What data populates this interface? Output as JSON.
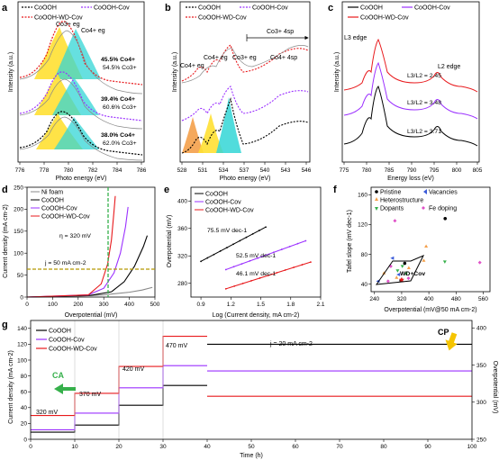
{
  "colors": {
    "pristine": "#000000",
    "vacancy": "#9b30ff",
    "wd": "#e8191c",
    "ni": "#888888",
    "yellow": "#ffe033",
    "cyan": "#33d6d6",
    "orange": "#f4a04a",
    "green": "#36b04b",
    "ann_green": "#3a8f22",
    "ann_purple": "#b429f9",
    "ann_yellow": "#b59800",
    "ann_red": "#e8191c"
  },
  "panels": {
    "a": {
      "label": "a",
      "xlabel": "Photo energy (eV)",
      "ylabel": "Intensity (a.u.)",
      "ticks": [
        "776",
        "778",
        "780",
        "782",
        "784",
        "786"
      ],
      "legend": [
        "CoOOH",
        "CoOOH-Cov",
        "CoOOH-WD-Cov"
      ],
      "peak_labels": [
        "Co3+ eg",
        "Co4+ eg"
      ],
      "ratios": [
        {
          "co4": "45.5% Co4+",
          "co3": "54.5% Co3+"
        },
        {
          "co4": "39.4% Co4+",
          "co3": "60.6% Co3+"
        },
        {
          "co4": "38.0% Co4+",
          "co3": "62.0% Co3+"
        }
      ]
    },
    "b": {
      "label": "b",
      "xlabel": "Photo energy (eV)",
      "ylabel": "Intensity (a.u.)",
      "ticks": [
        "528",
        "531",
        "534",
        "537",
        "540",
        "543",
        "546"
      ],
      "legend": [
        "CoOOH",
        "CoOOH-Cov",
        "CoOOH-WD-Cov"
      ],
      "peak_labels": [
        "Co4+ eg",
        "Co4+ eg",
        "Co3+ eg",
        "Co3+ 4sp",
        "Co4+ 4sp"
      ]
    },
    "c": {
      "label": "c",
      "xlabel": "Energy loss (eV)",
      "ylabel": "Intensity (a.u.)",
      "ticks": [
        "775",
        "780",
        "785",
        "790",
        "795",
        "800",
        "805"
      ],
      "legend": [
        "CoOOH",
        "CoOOH-Cov",
        "CoOOH-WD-Cov"
      ],
      "edges": [
        "L3 edge",
        "L2 edge"
      ],
      "ratios": [
        "L3/L2 = 2.45",
        "L3/L2 = 3.48",
        "L3/L2 = 3.71"
      ]
    },
    "d": {
      "label": "d",
      "xlabel": "Overpotential (mV)",
      "ylabel": "Current density (mA cm-2)",
      "xticks": [
        "0",
        "100",
        "200",
        "300",
        "400",
        "500"
      ],
      "yticks": [
        "0",
        "50",
        "100",
        "150",
        "200",
        "250"
      ],
      "legend": [
        "Ni foam",
        "CoOOH",
        "CoOOH-Cov",
        "CoOOH-WD-Cov"
      ],
      "eta": "η = 320 mV",
      "j": "j = 50 mA cm-2"
    },
    "e": {
      "label": "e",
      "xlabel": "Log (Current density, mA cm-2)",
      "ylabel": "Overpotential (mV)",
      "xticks": [
        "0.9",
        "1.2",
        "1.5",
        "1.8",
        "2.1"
      ],
      "yticks": [
        "280",
        "320",
        "360",
        "400"
      ],
      "legend": [
        "CoOOH",
        "CoOOH-Cov",
        "CoOOH-WD-Cov"
      ],
      "slopes": [
        "75.5 mV dec-1",
        "52.5 mV dec-1",
        "46.1 mV dec-1"
      ]
    },
    "f": {
      "label": "f",
      "xlabel": "Overpotential (mV@50 mA cm-2)",
      "ylabel": "Tafel slope (mV dec-1)",
      "xticks": [
        "240",
        "320",
        "400",
        "480",
        "560"
      ],
      "yticks": [
        "40",
        "80",
        "120",
        "160"
      ],
      "legend": [
        "Pristine",
        "Vacancies",
        "Heterostructure",
        "Dopants",
        "Fe doping"
      ],
      "highlight": "WD+Cov"
    },
    "g": {
      "label": "g",
      "xlabel": "Time (h)",
      "ylabel": "Current density (mA cm-2)",
      "y2label": "Overpotential (mV)",
      "xticks": [
        "0",
        "10",
        "20",
        "30",
        "40",
        "50",
        "60",
        "70",
        "80",
        "90",
        "100"
      ],
      "yticks": [
        "0",
        "20",
        "40",
        "60",
        "80",
        "100",
        "120",
        "140"
      ],
      "y2ticks": [
        "250",
        "300",
        "350",
        "400"
      ],
      "legend": [
        "CoOOH",
        "CoOOH-Cov",
        "CoOOH-WD-Cov"
      ],
      "steps": [
        "320 mV",
        "370 mV",
        "420 mV",
        "470 mV"
      ],
      "j": "j = 20 mA cm-2",
      "ca": "CA",
      "cp": "CP"
    }
  },
  "chart_data": [
    {
      "panel": "d",
      "type": "line",
      "xlabel": "Overpotential (mV)",
      "ylabel": "Current density (mA cm-2)",
      "xlim": [
        0,
        500
      ],
      "ylim": [
        0,
        250
      ],
      "series": [
        {
          "name": "Ni foam",
          "x": [
            0,
            200,
            300,
            400,
            450,
            490
          ],
          "y": [
            0,
            2,
            5,
            11,
            16,
            22
          ]
        },
        {
          "name": "CoOOH",
          "x": [
            0,
            250,
            330,
            380,
            420,
            455,
            470
          ],
          "y": [
            0,
            4,
            12,
            35,
            70,
            115,
            140
          ]
        },
        {
          "name": "CoOOH-Cov",
          "x": [
            0,
            240,
            300,
            340,
            365,
            385,
            395
          ],
          "y": [
            0,
            5,
            20,
            55,
            100,
            160,
            205
          ]
        },
        {
          "name": "CoOOH-WD-Cov",
          "x": [
            0,
            240,
            290,
            315,
            330,
            340,
            345
          ],
          "y": [
            0,
            5,
            30,
            75,
            130,
            195,
            230
          ]
        }
      ]
    },
    {
      "panel": "e",
      "type": "line",
      "xlabel": "Log (Current density, mA cm-2)",
      "ylabel": "Overpotential (mV)",
      "xlim": [
        0.8,
        2.1
      ],
      "ylim": [
        260,
        420
      ],
      "series": [
        {
          "name": "CoOOH",
          "x": [
            0.9,
            1.55
          ],
          "y": [
            312,
            362
          ]
        },
        {
          "name": "CoOOH-Cov",
          "x": [
            1.15,
            1.95
          ],
          "y": [
            300,
            342
          ]
        },
        {
          "name": "CoOOH-WD-Cov",
          "x": [
            1.15,
            2.0
          ],
          "y": [
            272,
            311
          ]
        }
      ]
    },
    {
      "panel": "f",
      "type": "scatter",
      "xlabel": "Overpotential (mV@50 mA cm-2)",
      "ylabel": "Tafel slope (mV dec-1)",
      "xlim": [
        230,
        580
      ],
      "ylim": [
        30,
        170
      ],
      "series": [
        {
          "name": "Pristine",
          "x": [
            448,
            318,
            329
          ],
          "y": [
            128,
            45,
            68
          ]
        },
        {
          "name": "Vacancies",
          "x": [
            292,
            250,
            310
          ],
          "y": [
            75,
            44,
            53
          ]
        },
        {
          "name": "Heterostructure",
          "x": [
            385,
            392,
            341,
            268,
            305
          ],
          "y": [
            72,
            91,
            62,
            55,
            49
          ]
        },
        {
          "name": "Dopants",
          "x": [
            447,
            308,
            322,
            333
          ],
          "y": [
            70,
            58,
            64,
            54
          ]
        },
        {
          "name": "Fe doping",
          "x": [
            300,
            288,
            550,
            340,
            280
          ],
          "y": [
            125,
            64,
            69,
            48,
            44
          ]
        },
        {
          "name": "WD+Cov",
          "x": [
            320
          ],
          "y": [
            46
          ]
        }
      ]
    },
    {
      "panel": "g",
      "type": "line",
      "xlabel": "Time (h)",
      "ylabel": "Current density (mA cm-2)",
      "xlim": [
        0,
        100
      ],
      "ylim": [
        0,
        150
      ],
      "series": [
        {
          "name": "CoOOH",
          "x": [
            0,
            10,
            10,
            20,
            20,
            30,
            30,
            40
          ],
          "y": [
            9,
            9,
            18,
            18,
            43,
            43,
            68,
            68
          ]
        },
        {
          "name": "CoOOH-Cov",
          "x": [
            0,
            10,
            10,
            20,
            20,
            30,
            30,
            40
          ],
          "y": [
            12,
            12,
            33,
            33,
            65,
            65,
            93,
            93
          ]
        },
        {
          "name": "CoOOH-WD-Cov",
          "x": [
            0,
            10,
            10,
            20,
            20,
            30,
            30,
            40
          ],
          "y": [
            30,
            30,
            58,
            58,
            92,
            92,
            130,
            130
          ]
        }
      ]
    },
    {
      "panel": "g-cp",
      "type": "line",
      "xlabel": "Time (h)",
      "ylabel": "Overpotential (mV)",
      "xlim": [
        0,
        100
      ],
      "ylim": [
        250,
        410
      ],
      "series": [
        {
          "name": "CoOOH",
          "x": [
            40,
            100
          ],
          "y": [
            378,
            378
          ]
        },
        {
          "name": "CoOOH-Cov",
          "x": [
            40,
            100
          ],
          "y": [
            342,
            342
          ]
        },
        {
          "name": "CoOOH-WD-Cov",
          "x": [
            40,
            100
          ],
          "y": [
            308,
            308
          ]
        }
      ]
    }
  ]
}
